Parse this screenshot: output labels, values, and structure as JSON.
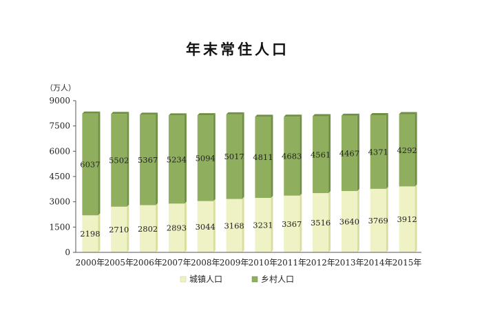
{
  "chart_data": {
    "type": "bar",
    "stacked": true,
    "title": "年末常住人口",
    "unit_label": "（万人）",
    "categories": [
      "2000年",
      "2005年",
      "2006年",
      "2007年",
      "2008年",
      "2009年",
      "2010年",
      "2011年",
      "2012年",
      "2013年",
      "2014年",
      "2015年"
    ],
    "series": [
      {
        "name": "城镇人口",
        "color": "#eef2c4",
        "values": [
          2198,
          2710,
          2802,
          2893,
          3044,
          3168,
          3231,
          3367,
          3516,
          3640,
          3769,
          3912
        ]
      },
      {
        "name": "乡村人口",
        "color": "#8faf5e",
        "values": [
          6037,
          5502,
          5367,
          5234,
          5094,
          5017,
          4811,
          4683,
          4561,
          4467,
          4371,
          4292
        ]
      }
    ],
    "ylim": [
      0,
      9000
    ],
    "yticks": [
      0,
      1500,
      3000,
      4500,
      6000,
      7500,
      9000
    ],
    "grid": false,
    "legend_position": "bottom"
  }
}
